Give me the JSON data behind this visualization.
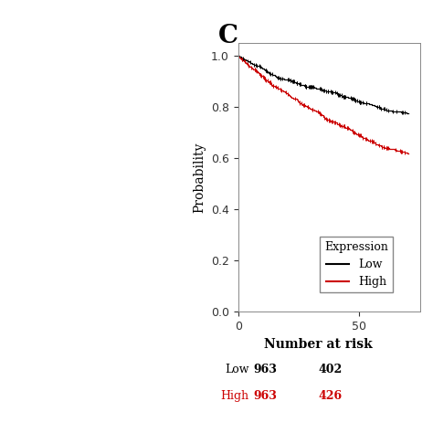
{
  "ylabel": "Probability",
  "xlim": [
    0,
    75
  ],
  "ylim": [
    0.0,
    1.05
  ],
  "yticks": [
    0.0,
    0.2,
    0.4,
    0.6,
    0.8,
    1.0
  ],
  "xticks": [
    0,
    50
  ],
  "legend_title": "Expression",
  "legend_low": "Low",
  "legend_high": "High",
  "low_color": "#000000",
  "high_color": "#cc0000",
  "number_at_risk_title": "Number at risk",
  "low_label": "Low",
  "high_label": "High",
  "low_n0": "963",
  "low_n50": "402",
  "high_n0": "963",
  "high_n50": "426",
  "background_color": "#ffffff",
  "panel_label": "C",
  "panel_label_fontsize": 20,
  "axis_label_fontsize": 10,
  "tick_fontsize": 9,
  "legend_fontsize": 9,
  "risk_fontsize": 9,
  "risk_title_fontsize": 10
}
